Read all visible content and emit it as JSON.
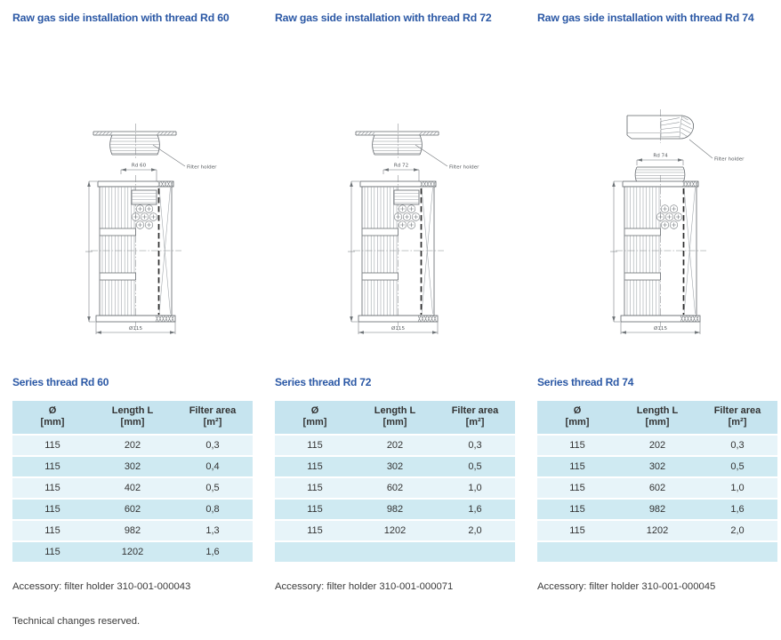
{
  "page": {
    "footer": "Technical changes reserved.",
    "background": "#ffffff"
  },
  "colors": {
    "heading_blue": "#2b58a5",
    "table_header_bg": "#c6e4ef",
    "table_row_light": "#e7f4f9",
    "table_row_dark": "#cfeaf2",
    "body_text": "#3c3c3c",
    "drawing_line": "#60656a"
  },
  "columns": [
    {
      "title": "Raw gas side installation with thread Rd 60",
      "drawing": {
        "thread_label": "Rd 60",
        "holder_label": "Filter holder",
        "diameter_label": "Ø115"
      },
      "table_title": "Series thread Rd 60",
      "table": {
        "headers": [
          [
            "Ø",
            "[mm]"
          ],
          [
            "Length L",
            "[mm]"
          ],
          [
            "Filter area",
            "[m²]"
          ]
        ],
        "rows": [
          [
            "115",
            "202",
            "0,3"
          ],
          [
            "115",
            "302",
            "0,4"
          ],
          [
            "115",
            "402",
            "0,5"
          ],
          [
            "115",
            "602",
            "0,8"
          ],
          [
            "115",
            "982",
            "1,3"
          ],
          [
            "115",
            "1202",
            "1,6"
          ]
        ]
      },
      "accessory": "Accessory: filter holder 310-001-000043"
    },
    {
      "title": "Raw gas side installation with thread Rd 72",
      "drawing": {
        "thread_label": "Rd 72",
        "holder_label": "Filter holder",
        "diameter_label": "Ø115"
      },
      "table_title": "Series thread Rd 72",
      "table": {
        "headers": [
          [
            "Ø",
            "[mm]"
          ],
          [
            "Length L",
            "[mm]"
          ],
          [
            "Filter area",
            "[m²]"
          ]
        ],
        "rows": [
          [
            "115",
            "202",
            "0,3"
          ],
          [
            "115",
            "302",
            "0,5"
          ],
          [
            "115",
            "602",
            "1,0"
          ],
          [
            "115",
            "982",
            "1,6"
          ],
          [
            "115",
            "1202",
            "2,0"
          ],
          [
            "",
            "",
            ""
          ]
        ]
      },
      "accessory": "Accessory: filter holder 310-001-000071"
    },
    {
      "title": "Raw gas side installation with thread Rd 74",
      "drawing": {
        "thread_label": "Rd 74",
        "holder_label": "Filter holder",
        "diameter_label": "Ø115"
      },
      "table_title": "Series thread Rd 74",
      "table": {
        "headers": [
          [
            "Ø",
            "[mm]"
          ],
          [
            "Length L",
            "[mm]"
          ],
          [
            "Filter area",
            "[m²]"
          ]
        ],
        "rows": [
          [
            "115",
            "202",
            "0,3"
          ],
          [
            "115",
            "302",
            "0,5"
          ],
          [
            "115",
            "602",
            "1,0"
          ],
          [
            "115",
            "982",
            "1,6"
          ],
          [
            "115",
            "1202",
            "2,0"
          ],
          [
            "",
            "",
            ""
          ]
        ]
      },
      "accessory": "Accessory: filter holder 310-001-000045"
    }
  ]
}
